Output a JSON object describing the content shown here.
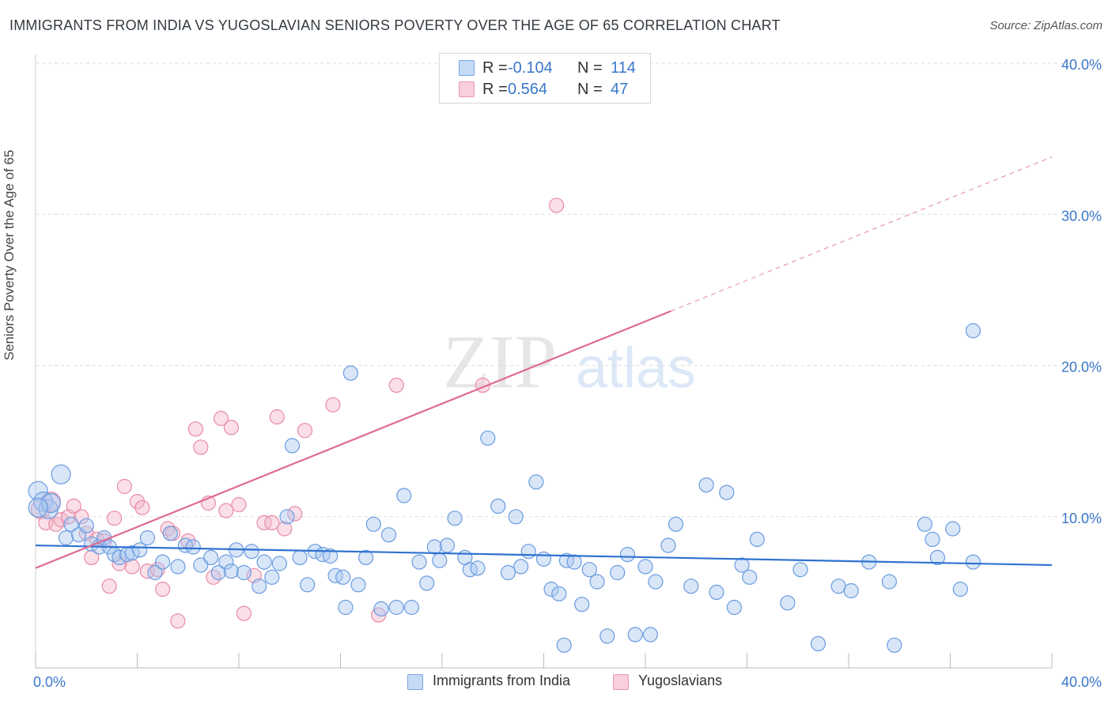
{
  "title": "IMMIGRANTS FROM INDIA VS YUGOSLAVIAN SENIORS POVERTY OVER THE AGE OF 65 CORRELATION CHART",
  "source": "Source: ZipAtlas.com",
  "watermark": "ZIPatlas",
  "colors": {
    "blue_fill": "#a9c8ef",
    "blue_stroke": "#6a9be0",
    "blue_line": "#2f72d0",
    "pink_fill": "#f5b9ca",
    "pink_stroke": "#e98aa6",
    "pink_line": "#e06a90",
    "tick_label": "#3a77c9",
    "grid": "#dddddd"
  },
  "legend_top": [
    {
      "r_label": "R =",
      "r_value": "-0.104",
      "n_label": "N =",
      "n_value": "114"
    },
    {
      "r_label": "R =",
      "r_value": "0.564",
      "n_label": "N =",
      "n_value": "47"
    }
  ],
  "chart_data": {
    "type": "scatter",
    "title": "IMMIGRANTS FROM INDIA VS YUGOSLAVIAN SENIORS POVERTY OVER THE AGE OF 65 CORRELATION CHART",
    "xlabel": "",
    "ylabel": "Seniors Poverty Over the Age of 65",
    "xlim": [
      0,
      40
    ],
    "ylim": [
      0,
      40
    ],
    "x_tick_labels": [
      "0.0%",
      "40.0%"
    ],
    "y_ticks": [
      10,
      20,
      30,
      40
    ],
    "y_tick_labels": [
      "10.0%",
      "20.0%",
      "30.0%",
      "40.0%"
    ],
    "grid": true,
    "legend_position": "bottom",
    "series": [
      {
        "name": "Immigrants from India",
        "color": "#6a9be0",
        "trend": {
          "x": [
            0,
            40
          ],
          "y": [
            8.1,
            6.8
          ]
        },
        "points": [
          [
            0.1,
            11.7
          ],
          [
            0.3,
            11.0
          ],
          [
            0.5,
            10.5
          ],
          [
            0.6,
            10.9
          ],
          [
            1.0,
            12.8
          ],
          [
            1.2,
            8.6
          ],
          [
            1.4,
            9.5
          ],
          [
            1.7,
            8.8
          ],
          [
            2.0,
            9.4
          ],
          [
            2.2,
            8.2
          ],
          [
            2.5,
            8.0
          ],
          [
            2.7,
            8.6
          ],
          [
            2.9,
            8.0
          ],
          [
            3.1,
            7.5
          ],
          [
            3.3,
            7.3
          ],
          [
            3.6,
            7.5
          ],
          [
            3.8,
            7.6
          ],
          [
            4.1,
            7.8
          ],
          [
            4.4,
            8.6
          ],
          [
            4.7,
            6.3
          ],
          [
            5.0,
            7.0
          ],
          [
            5.3,
            8.9
          ],
          [
            5.6,
            6.7
          ],
          [
            5.9,
            8.1
          ],
          [
            6.2,
            8.0
          ],
          [
            6.5,
            6.8
          ],
          [
            6.9,
            7.3
          ],
          [
            7.2,
            6.3
          ],
          [
            7.5,
            7.0
          ],
          [
            7.7,
            6.4
          ],
          [
            7.9,
            7.8
          ],
          [
            8.2,
            6.3
          ],
          [
            8.5,
            7.7
          ],
          [
            8.8,
            5.4
          ],
          [
            9.0,
            7.0
          ],
          [
            9.3,
            6.0
          ],
          [
            9.6,
            6.9
          ],
          [
            9.9,
            10.0
          ],
          [
            10.1,
            14.7
          ],
          [
            10.4,
            7.3
          ],
          [
            10.7,
            5.5
          ],
          [
            11.0,
            7.7
          ],
          [
            11.3,
            7.5
          ],
          [
            11.6,
            7.4
          ],
          [
            11.8,
            6.1
          ],
          [
            12.1,
            6.0
          ],
          [
            12.4,
            19.5
          ],
          [
            12.7,
            5.5
          ],
          [
            13.0,
            7.3
          ],
          [
            13.3,
            9.5
          ],
          [
            13.6,
            3.9
          ],
          [
            13.9,
            8.8
          ],
          [
            14.2,
            4.0
          ],
          [
            14.5,
            11.4
          ],
          [
            14.8,
            4.0
          ],
          [
            15.1,
            7.0
          ],
          [
            15.4,
            5.6
          ],
          [
            15.7,
            8.0
          ],
          [
            15.9,
            7.1
          ],
          [
            16.2,
            8.1
          ],
          [
            16.5,
            9.9
          ],
          [
            16.9,
            7.3
          ],
          [
            17.1,
            6.5
          ],
          [
            17.4,
            6.6
          ],
          [
            17.8,
            15.2
          ],
          [
            18.2,
            10.7
          ],
          [
            18.6,
            6.3
          ],
          [
            18.9,
            10.0
          ],
          [
            19.1,
            6.7
          ],
          [
            19.4,
            7.7
          ],
          [
            19.7,
            12.3
          ],
          [
            20.0,
            7.2
          ],
          [
            20.3,
            5.2
          ],
          [
            20.6,
            4.9
          ],
          [
            20.9,
            7.1
          ],
          [
            21.2,
            7.0
          ],
          [
            21.5,
            4.2
          ],
          [
            21.8,
            6.5
          ],
          [
            22.1,
            5.7
          ],
          [
            22.5,
            2.1
          ],
          [
            22.9,
            6.3
          ],
          [
            23.3,
            7.5
          ],
          [
            23.6,
            2.2
          ],
          [
            24.0,
            6.7
          ],
          [
            24.4,
            5.7
          ],
          [
            24.9,
            8.1
          ],
          [
            25.2,
            9.5
          ],
          [
            25.8,
            5.4
          ],
          [
            26.4,
            12.1
          ],
          [
            26.8,
            5.0
          ],
          [
            27.2,
            11.6
          ],
          [
            27.5,
            4.0
          ],
          [
            27.8,
            6.8
          ],
          [
            28.1,
            6.0
          ],
          [
            28.4,
            8.5
          ],
          [
            29.6,
            4.3
          ],
          [
            30.1,
            6.5
          ],
          [
            30.8,
            1.6
          ],
          [
            31.6,
            5.4
          ],
          [
            32.1,
            5.1
          ],
          [
            32.8,
            7.0
          ],
          [
            33.6,
            5.7
          ],
          [
            33.8,
            1.5
          ],
          [
            35.0,
            9.5
          ],
          [
            35.3,
            8.5
          ],
          [
            35.5,
            7.3
          ],
          [
            36.1,
            9.2
          ],
          [
            36.9,
            7.0
          ],
          [
            36.4,
            5.2
          ],
          [
            36.9,
            22.3
          ],
          [
            24.2,
            2.2
          ],
          [
            20.8,
            1.5
          ],
          [
            12.2,
            4.0
          ],
          [
            0.1,
            10.6
          ]
        ]
      },
      {
        "name": "Yugoslavians",
        "color": "#e98aa6",
        "trend": {
          "x": [
            0,
            40
          ],
          "y": [
            6.6,
            33.8
          ],
          "solid_until_x": 25.0
        },
        "points": [
          [
            0.2,
            10.5
          ],
          [
            0.4,
            9.6
          ],
          [
            0.6,
            11.0
          ],
          [
            0.8,
            9.5
          ],
          [
            1.0,
            9.8
          ],
          [
            1.3,
            10.0
          ],
          [
            1.5,
            10.7
          ],
          [
            1.8,
            10.0
          ],
          [
            2.0,
            8.9
          ],
          [
            2.2,
            7.3
          ],
          [
            2.4,
            8.5
          ],
          [
            2.7,
            8.4
          ],
          [
            2.9,
            5.4
          ],
          [
            3.1,
            9.9
          ],
          [
            3.3,
            6.9
          ],
          [
            3.5,
            12.0
          ],
          [
            3.8,
            6.7
          ],
          [
            4.0,
            11.0
          ],
          [
            4.2,
            10.6
          ],
          [
            4.4,
            6.4
          ],
          [
            4.8,
            6.5
          ],
          [
            5.0,
            5.2
          ],
          [
            5.2,
            9.2
          ],
          [
            5.4,
            8.9
          ],
          [
            5.6,
            3.1
          ],
          [
            6.0,
            8.4
          ],
          [
            6.3,
            15.8
          ],
          [
            6.5,
            14.6
          ],
          [
            6.8,
            10.9
          ],
          [
            7.0,
            6.0
          ],
          [
            7.3,
            16.5
          ],
          [
            7.5,
            10.4
          ],
          [
            7.7,
            15.9
          ],
          [
            8.0,
            10.8
          ],
          [
            8.2,
            3.6
          ],
          [
            8.6,
            6.1
          ],
          [
            9.0,
            9.6
          ],
          [
            9.3,
            9.6
          ],
          [
            9.5,
            16.6
          ],
          [
            9.8,
            9.2
          ],
          [
            10.2,
            10.2
          ],
          [
            10.6,
            15.7
          ],
          [
            11.7,
            17.4
          ],
          [
            13.5,
            3.5
          ],
          [
            14.2,
            18.7
          ],
          [
            17.6,
            18.7
          ],
          [
            20.5,
            30.6
          ]
        ]
      }
    ]
  }
}
